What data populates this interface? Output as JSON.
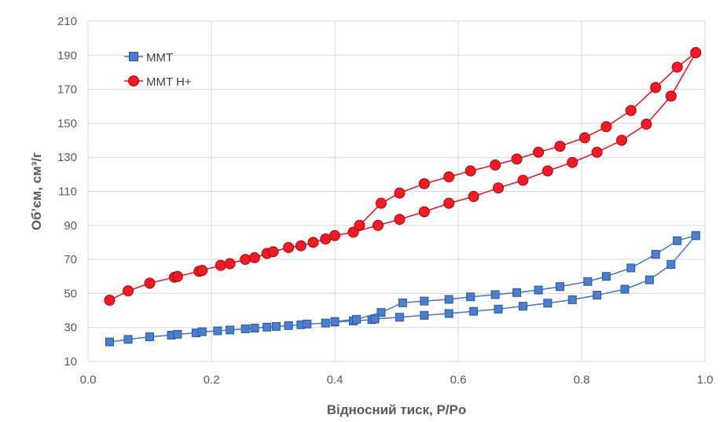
{
  "chart_data": {
    "type": "scatter",
    "title": "",
    "xlabel": "Відносний тиск, P/Po",
    "ylabel": "Об’єм, см³/г",
    "xlim": [
      0.0,
      1.0
    ],
    "ylim": [
      10,
      210
    ],
    "xticks": [
      "0.0",
      "0.2",
      "0.4",
      "0.6",
      "0.8",
      "1.0"
    ],
    "yticks": [
      "10",
      "30",
      "50",
      "70",
      "90",
      "110",
      "130",
      "150",
      "170",
      "190",
      "210"
    ],
    "grid": true,
    "legend_position": "top-left",
    "series": [
      {
        "name": "MMT",
        "color": "#4472c4",
        "marker": "square",
        "adsorption": {
          "x": [
            0.035,
            0.065,
            0.1,
            0.135,
            0.145,
            0.175,
            0.185,
            0.21,
            0.23,
            0.255,
            0.27,
            0.29,
            0.305,
            0.325,
            0.345,
            0.355,
            0.385,
            0.4,
            0.43,
            0.46
          ],
          "y": [
            21.5,
            23.0,
            24.5,
            25.5,
            26.0,
            26.8,
            27.5,
            28.0,
            28.5,
            29.2,
            29.6,
            30.2,
            30.6,
            31.1,
            31.6,
            32.0,
            32.6,
            33.2,
            33.8,
            34.6
          ]
        },
        "desorption": {
          "x": [
            0.985,
            0.955,
            0.92,
            0.88,
            0.84,
            0.81,
            0.765,
            0.73,
            0.695,
            0.66,
            0.62,
            0.585,
            0.545,
            0.51,
            0.475,
            0.435,
            0.4
          ],
          "y": [
            84.0,
            81.0,
            73.0,
            65.0,
            60.0,
            57.0,
            54.0,
            52.0,
            50.5,
            49.3,
            48.0,
            46.5,
            45.5,
            44.5,
            38.8,
            34.8,
            33.5
          ]
        },
        "desorption_lower": {
          "x": [
            0.985,
            0.945,
            0.91,
            0.87,
            0.825,
            0.785,
            0.745,
            0.705,
            0.665,
            0.625,
            0.585,
            0.545,
            0.505,
            0.465
          ],
          "y": [
            84.0,
            67.0,
            58.0,
            52.5,
            49.0,
            46.3,
            44.3,
            42.5,
            40.8,
            39.5,
            38.2,
            37.1,
            36.0,
            35.0
          ]
        }
      },
      {
        "name": "MMT H+",
        "color": "#e8101a",
        "marker": "circle",
        "adsorption": {
          "x": [
            0.035,
            0.065,
            0.1,
            0.14,
            0.145,
            0.18,
            0.185,
            0.215,
            0.23,
            0.255,
            0.27,
            0.29,
            0.3,
            0.325,
            0.345,
            0.365,
            0.385,
            0.4,
            0.43,
            0.47,
            0.505,
            0.545,
            0.585,
            0.625,
            0.665,
            0.705,
            0.745,
            0.785,
            0.825,
            0.865,
            0.905,
            0.945,
            0.985
          ],
          "y": [
            46.0,
            51.5,
            56.0,
            59.5,
            60.0,
            63.0,
            63.5,
            66.5,
            67.5,
            70.0,
            71.0,
            73.5,
            74.5,
            77.0,
            78.0,
            80.0,
            82.0,
            84.0,
            86.0,
            90.0,
            93.5,
            98.0,
            103.0,
            107.0,
            112.0,
            116.5,
            122.0,
            127.0,
            133.0,
            140.0,
            149.5,
            166.0,
            191.5
          ]
        },
        "desorption": {
          "x": [
            0.985,
            0.955,
            0.92,
            0.88,
            0.84,
            0.805,
            0.765,
            0.73,
            0.695,
            0.66,
            0.62,
            0.585,
            0.545,
            0.505,
            0.475,
            0.44
          ],
          "y": [
            191.5,
            183.0,
            171.0,
            157.5,
            148.0,
            141.5,
            136.5,
            133.0,
            129.0,
            125.5,
            122.0,
            118.5,
            114.5,
            109.0,
            103.0,
            90.0
          ]
        }
      }
    ]
  }
}
